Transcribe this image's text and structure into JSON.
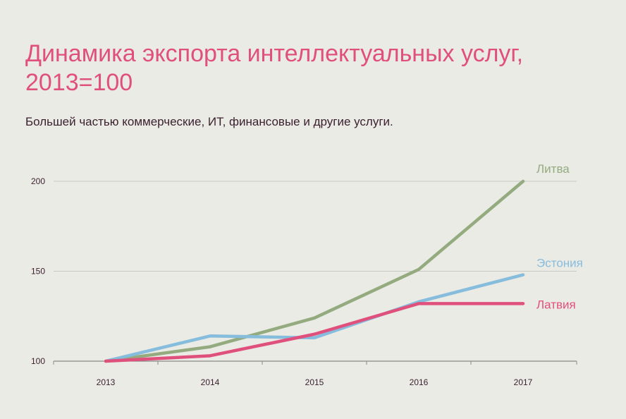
{
  "title": "Динамика экспорта интеллектуальных услуг, 2013=100",
  "subtitle": "Большей частью коммерческие, ИТ, финансовые и другие услуги.",
  "chart_data": {
    "type": "line",
    "title": "Динамика экспорта интеллектуальных услуг, 2013=100",
    "subtitle": "Большей частью коммерческие, ИТ, финансовые и другие услуги.",
    "xlabel": "",
    "ylabel": "",
    "categories": [
      "2013",
      "2014",
      "2015",
      "2016",
      "2017"
    ],
    "y_ticks": [
      "100",
      "150",
      "200"
    ],
    "ylim": [
      100,
      200
    ],
    "grid": true,
    "legend": "labels at line ends",
    "series": [
      {
        "name": "Литва",
        "color": "#93ab7e",
        "values": [
          100,
          108,
          124,
          151,
          200
        ]
      },
      {
        "name": "Эстония",
        "color": "#86bcdc",
        "values": [
          100,
          114,
          113,
          133,
          148
        ]
      },
      {
        "name": "Латвия",
        "color": "#e0507c",
        "values": [
          100,
          103,
          115,
          132,
          132
        ]
      }
    ]
  }
}
